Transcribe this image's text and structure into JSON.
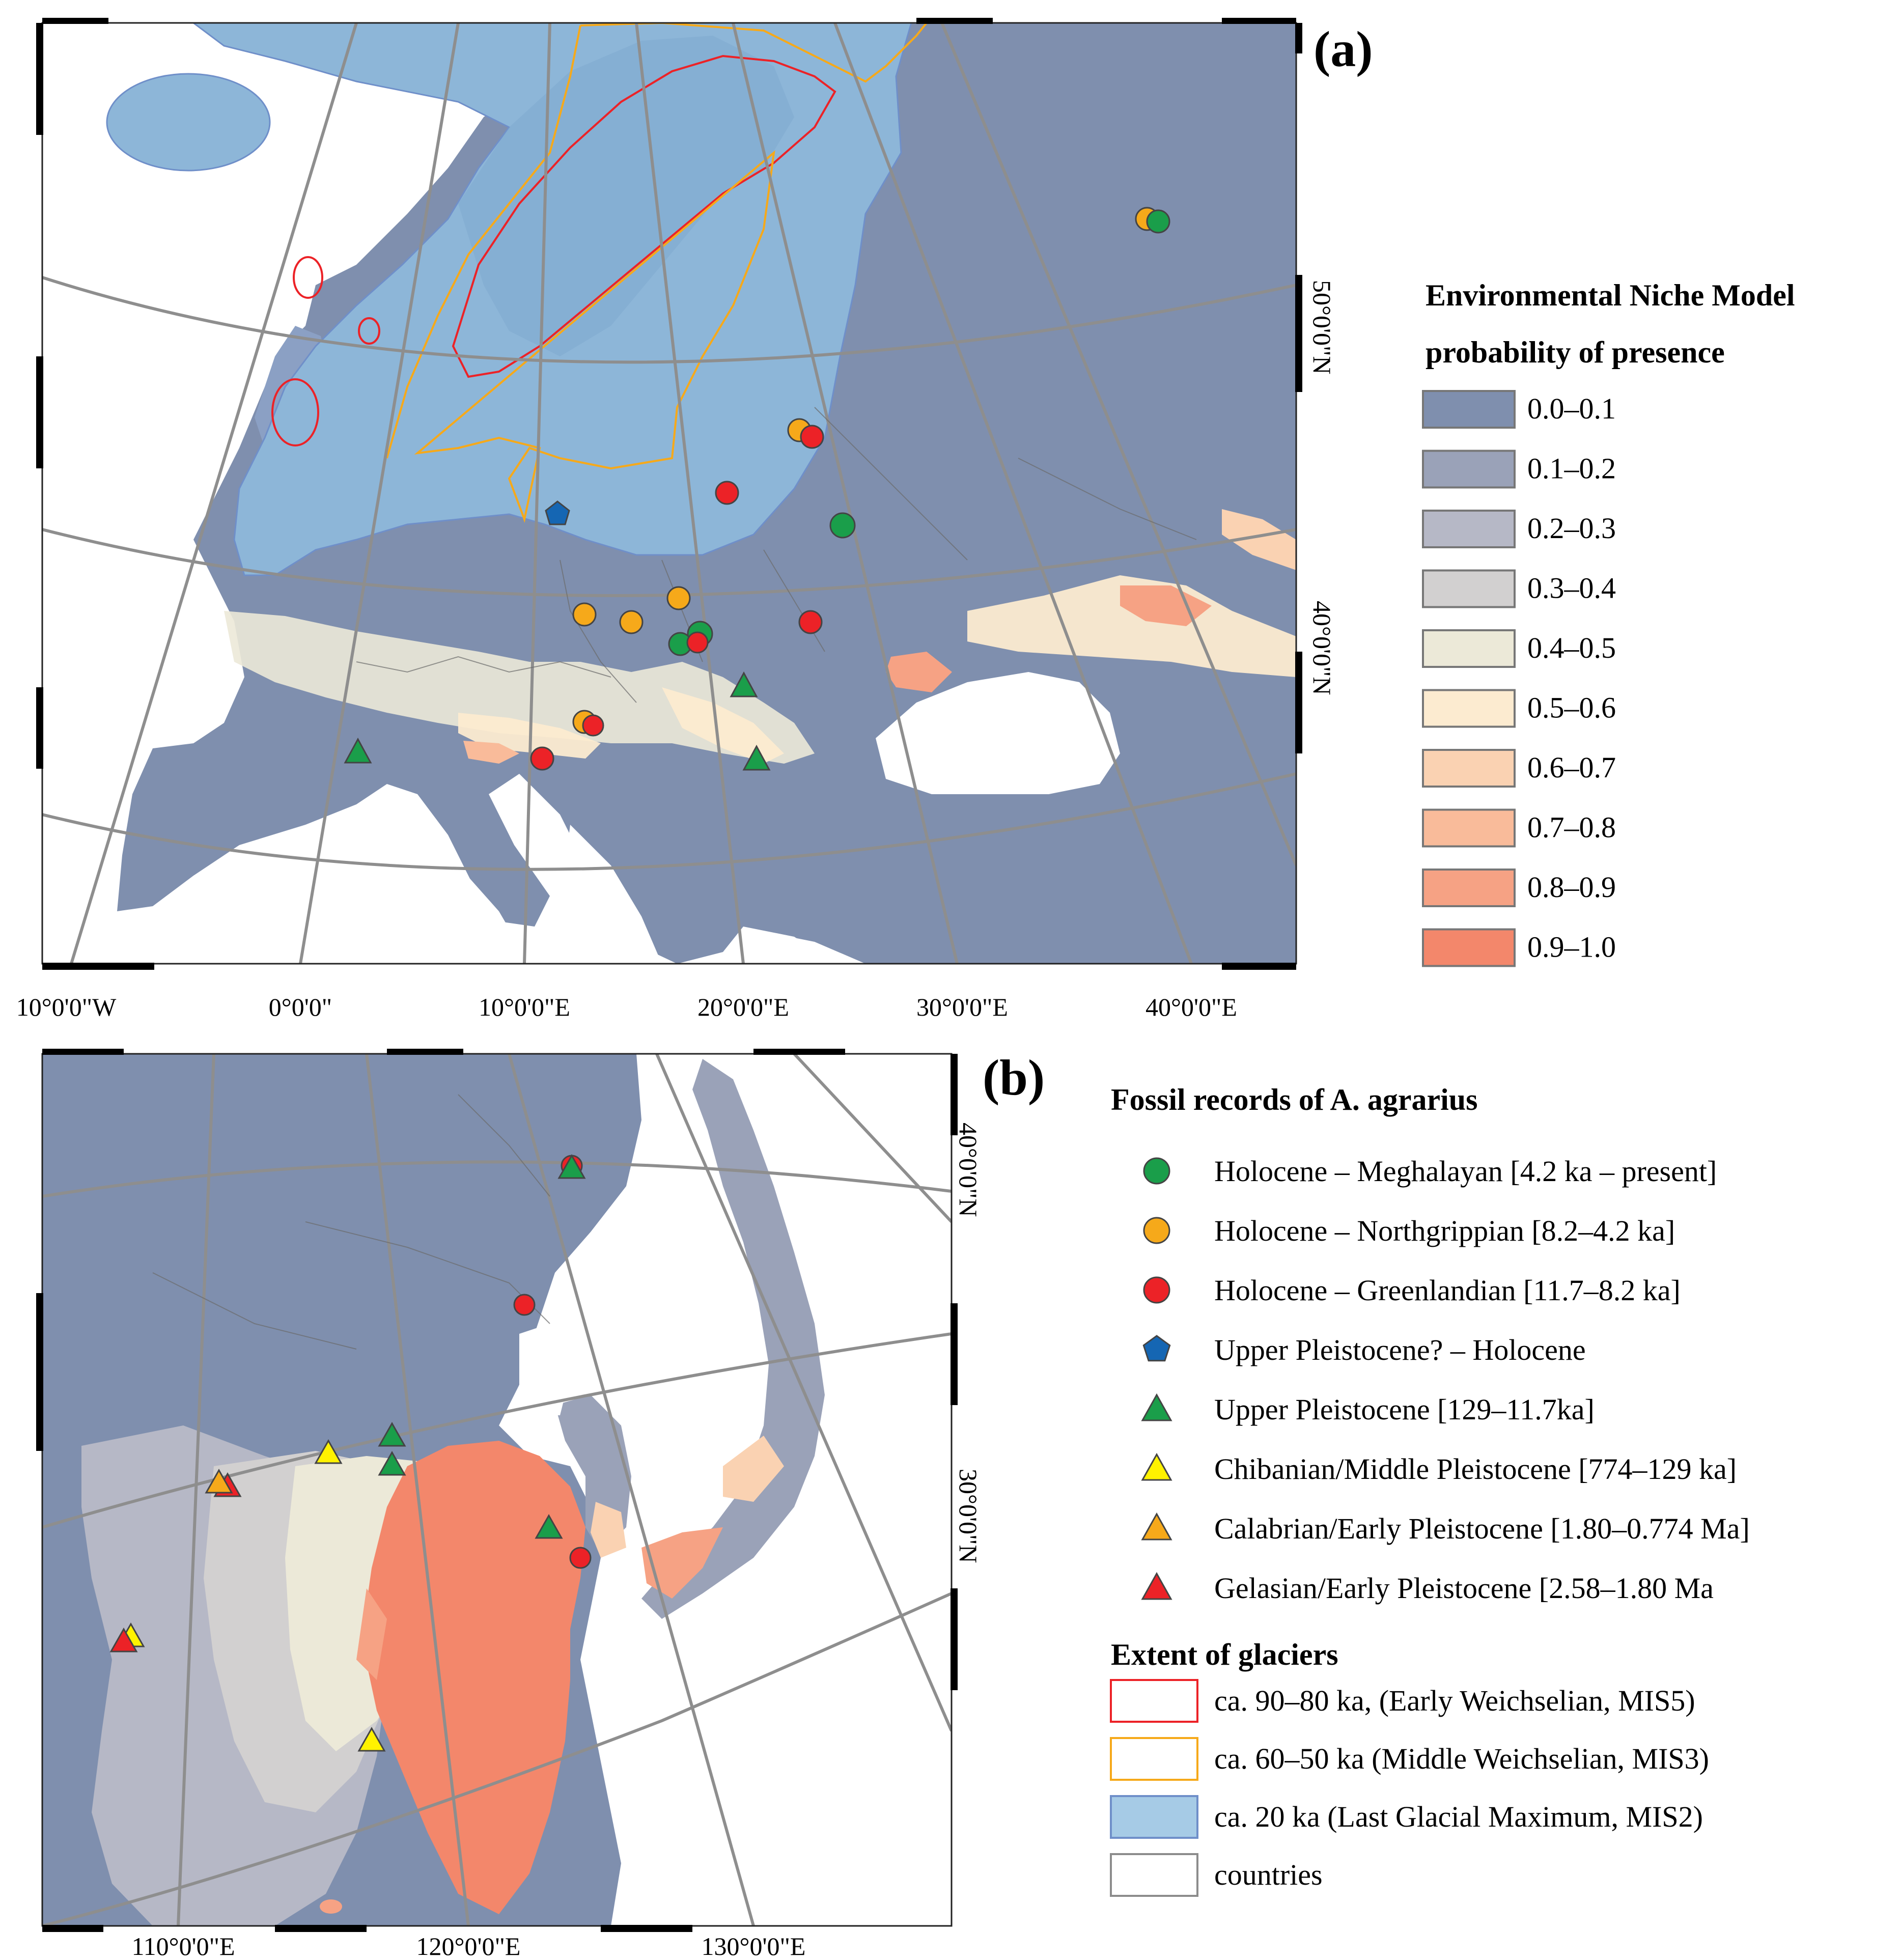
{
  "panel_a": {
    "label": "(a)",
    "lon_labels": [
      "10°0'0\"W",
      "0°0'0\"",
      "10°0'0\"E",
      "20°0'0\"E",
      "30°0'0\"E",
      "40°0'0\"E"
    ],
    "lat_labels": [
      "50°0'0\"N",
      "40°0'0\"N"
    ]
  },
  "panel_b": {
    "label": "(b)",
    "lon_labels": [
      "110°0'0\"E",
      "120°0'0\"E",
      "130°0'0\"E"
    ],
    "lat_labels": [
      "40°0'0\"N",
      "30°0'0\"N"
    ]
  },
  "niche_legend": {
    "title_line1": "Environmental Niche Model",
    "title_line2": "probability of presence",
    "classes": [
      {
        "label": "0.0–0.1",
        "color": "#7f8fae"
      },
      {
        "label": "0.1–0.2",
        "color": "#9aa2b8"
      },
      {
        "label": "0.2–0.3",
        "color": "#b6b8c6"
      },
      {
        "label": "0.3–0.4",
        "color": "#d2d0d0"
      },
      {
        "label": "0.4–0.5",
        "color": "#ece9d8"
      },
      {
        "label": "0.5–0.6",
        "color": "#fcebd0"
      },
      {
        "label": "0.6–0.7",
        "color": "#fad2b2"
      },
      {
        "label": "0.7–0.8",
        "color": "#f9bb9a"
      },
      {
        "label": "0.8–0.9",
        "color": "#f6a284"
      },
      {
        "label": "0.9–1.0",
        "color": "#f3876b"
      }
    ]
  },
  "fossil_legend": {
    "title": "Fossil records of A. agrarius",
    "items": [
      {
        "label": "Holocene – Meghalayan [4.2 ka – present]",
        "shape": "circle",
        "color": "#1a9e4a"
      },
      {
        "label": "Holocene – Northgrippian [8.2–4.2 ka]",
        "shape": "circle",
        "color": "#f6a91a"
      },
      {
        "label": "Holocene – Greenlandian [11.7–8.2 ka]",
        "shape": "circle",
        "color": "#ec2227"
      },
      {
        "label": "Upper Pleistocene? – Holocene",
        "shape": "pentagon",
        "color": "#1566b3"
      },
      {
        "label": "Upper Pleistocene [129–11.7ka]",
        "shape": "triangle",
        "color": "#1a9e4a"
      },
      {
        "label": "Chibanian/Middle Pleistocene [774–129 ka]",
        "shape": "triangle",
        "color": "#fff200"
      },
      {
        "label": "Calabrian/Early Pleistocene [1.80–0.774 Ma]",
        "shape": "triangle",
        "color": "#f6a91a"
      },
      {
        "label": "Gelasian/Early Pleistocene [2.58–1.80 Ma",
        "shape": "triangle",
        "color": "#ec2227"
      }
    ]
  },
  "glacier_legend": {
    "title": "Extent of glaciers",
    "items": [
      {
        "label": "ca. 90–80 ka, (Early Weichselian, MIS5)",
        "stroke": "#ec2227",
        "fill": "#ffffff"
      },
      {
        "label": "ca. 60–50 ka (Middle Weichselian, MIS3)",
        "stroke": "#f6a91a",
        "fill": "#ffffff"
      },
      {
        "label": "ca. 20 ka (Last Glacial Maximum, MIS2)",
        "stroke": "#6f8fc9",
        "fill": "#a6cbe6"
      },
      {
        "label": "countries",
        "stroke": "#8c8c8c",
        "fill": "#ffffff"
      }
    ]
  }
}
